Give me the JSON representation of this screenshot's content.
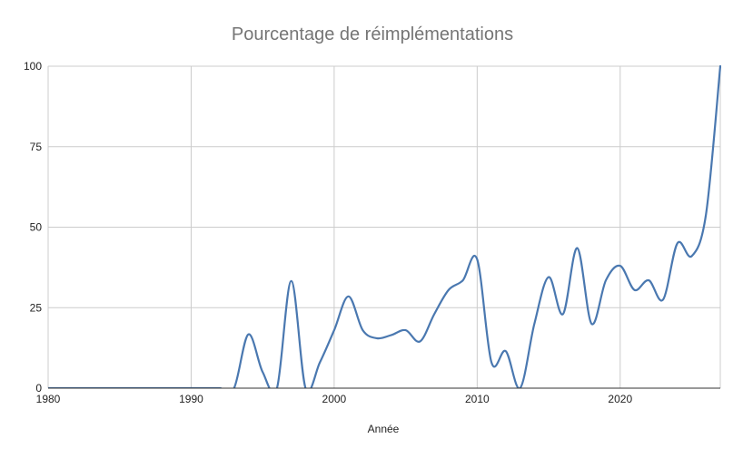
{
  "chart_data": {
    "type": "line",
    "title": "Pourcentage de réimplémentations",
    "xlabel": "Année",
    "ylabel": "",
    "xlim": [
      1980,
      2027
    ],
    "ylim": [
      0,
      100
    ],
    "x_ticks": [
      1980,
      1990,
      2000,
      2010,
      2020
    ],
    "y_ticks": [
      0,
      25,
      50,
      75,
      100
    ],
    "grid": true,
    "smooth": true,
    "series": [
      {
        "color": "#4a78b0",
        "points": [
          [
            1980,
            0
          ],
          [
            1981,
            0
          ],
          [
            1982,
            0
          ],
          [
            1983,
            0
          ],
          [
            1984,
            0
          ],
          [
            1985,
            0
          ],
          [
            1986,
            0
          ],
          [
            1987,
            0
          ],
          [
            1988,
            0
          ],
          [
            1989,
            0
          ],
          [
            1990,
            0
          ],
          [
            1991,
            0
          ],
          [
            1992,
            0
          ],
          [
            1993,
            0
          ],
          [
            1994,
            16.7
          ],
          [
            1995,
            5
          ],
          [
            1996,
            0
          ],
          [
            1997,
            33.3
          ],
          [
            1998,
            0
          ],
          [
            1999,
            8
          ],
          [
            2000,
            18
          ],
          [
            2001,
            28.5
          ],
          [
            2002,
            18
          ],
          [
            2003,
            15.5
          ],
          [
            2004,
            16.5
          ],
          [
            2005,
            18
          ],
          [
            2006,
            14.5
          ],
          [
            2007,
            23
          ],
          [
            2008,
            30.5
          ],
          [
            2009,
            33.5
          ],
          [
            2010,
            40
          ],
          [
            2011,
            8
          ],
          [
            2012,
            11.5
          ],
          [
            2013,
            0
          ],
          [
            2014,
            20
          ],
          [
            2015,
            34.5
          ],
          [
            2016,
            23
          ],
          [
            2017,
            43.5
          ],
          [
            2018,
            20
          ],
          [
            2019,
            33.5
          ],
          [
            2020,
            38
          ],
          [
            2021,
            30.5
          ],
          [
            2022,
            33.5
          ],
          [
            2023,
            27.5
          ],
          [
            2024,
            45
          ],
          [
            2025,
            41
          ],
          [
            2026,
            54
          ],
          [
            2027,
            100
          ]
        ]
      }
    ]
  }
}
